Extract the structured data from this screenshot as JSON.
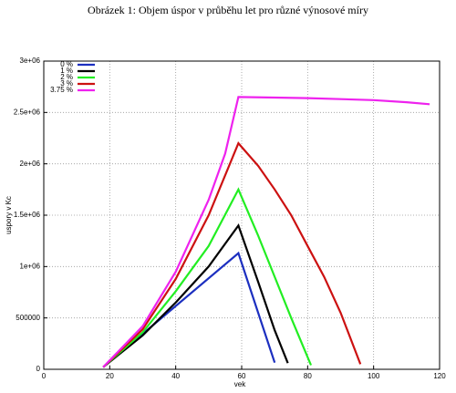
{
  "chart_data": {
    "type": "line",
    "title": "Obrázek 1: Objem úspor v průběhu let pro různé výnosové míry",
    "xlabel": "vek",
    "ylabel": "uspory v Kc",
    "xlim": [
      0,
      120
    ],
    "xticks": [
      0,
      20,
      40,
      60,
      80,
      100,
      120
    ],
    "ylim": [
      0,
      3000000
    ],
    "yticks": [
      0,
      500000,
      {
        "value": 1000000,
        "label": "1e+06"
      },
      {
        "value": 1500000,
        "label": "1.5e+06"
      },
      {
        "value": 2000000,
        "label": "2e+06"
      },
      {
        "value": 2500000,
        "label": "2.5e+06"
      },
      {
        "value": 3000000,
        "label": "3e+06"
      }
    ],
    "grid": true,
    "legend": "upper left",
    "series": [
      {
        "name": "0 %",
        "color": "#1c2fc0",
        "x": [
          18,
          59,
          70
        ],
        "values": [
          20000,
          1130000,
          65000
        ]
      },
      {
        "name": "1 %",
        "color": "#000000",
        "x": [
          18,
          30,
          40,
          50,
          59,
          65,
          70,
          74
        ],
        "values": [
          20000,
          330000,
          650000,
          1000000,
          1400000,
          850000,
          380000,
          60000
        ]
      },
      {
        "name": "2 %",
        "color": "#22ee22",
        "x": [
          18,
          30,
          40,
          50,
          59,
          65,
          70,
          75,
          81
        ],
        "values": [
          20000,
          360000,
          760000,
          1200000,
          1750000,
          1300000,
          900000,
          500000,
          40000
        ]
      },
      {
        "name": "3 %",
        "color": "#cc1111",
        "x": [
          18,
          30,
          40,
          50,
          59,
          65,
          70,
          75,
          80,
          85,
          90,
          96
        ],
        "values": [
          20000,
          390000,
          880000,
          1500000,
          2200000,
          1980000,
          1750000,
          1500000,
          1200000,
          900000,
          550000,
          50000
        ]
      },
      {
        "name": "3.75 %",
        "color": "#ee22ee",
        "x": [
          18,
          30,
          40,
          50,
          55,
          59,
          70,
          80,
          90,
          100,
          110,
          117
        ],
        "values": [
          20000,
          420000,
          950000,
          1650000,
          2100000,
          2650000,
          2645000,
          2640000,
          2630000,
          2620000,
          2600000,
          2580000
        ]
      }
    ]
  }
}
